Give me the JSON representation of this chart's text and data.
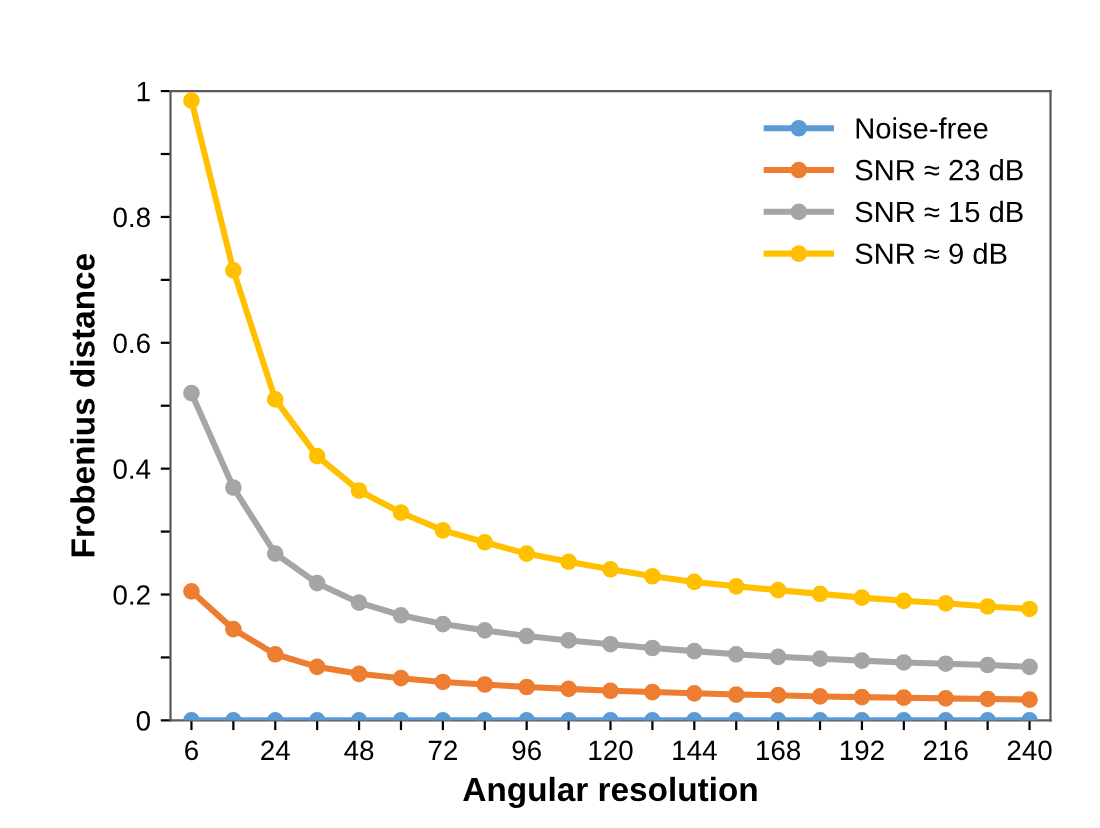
{
  "chart_data": {
    "type": "line",
    "xlabel": "Angular resolution",
    "ylabel": "Frobenius distance",
    "categories": [
      "6",
      null,
      "24",
      null,
      "48",
      null,
      "72",
      null,
      "96",
      null,
      "120",
      null,
      "144",
      null,
      "168",
      null,
      "192",
      null,
      "216",
      null,
      "240"
    ],
    "series": [
      {
        "name": "Noise-free",
        "color": "#5b9bd5",
        "values": [
          0,
          0,
          0,
          0,
          0,
          0,
          0,
          0,
          0,
          0,
          0,
          0,
          0,
          0,
          0,
          0,
          0,
          0,
          0,
          0,
          0
        ]
      },
      {
        "name": "SNR ≈ 23 dB",
        "color": "#ed7d31",
        "values": [
          0.205,
          0.145,
          0.105,
          0.085,
          0.074,
          0.067,
          0.061,
          0.057,
          0.053,
          0.05,
          0.047,
          0.045,
          0.043,
          0.041,
          0.04,
          0.038,
          0.037,
          0.036,
          0.035,
          0.034,
          0.033
        ]
      },
      {
        "name": "SNR ≈ 15 dB",
        "color": "#a5a5a5",
        "values": [
          0.52,
          0.37,
          0.265,
          0.218,
          0.187,
          0.167,
          0.153,
          0.143,
          0.134,
          0.127,
          0.121,
          0.115,
          0.11,
          0.105,
          0.101,
          0.098,
          0.095,
          0.092,
          0.09,
          0.088,
          0.085
        ]
      },
      {
        "name": "SNR ≈ 9 dB",
        "color": "#ffc000",
        "values": [
          0.985,
          0.715,
          0.51,
          0.42,
          0.365,
          0.33,
          0.302,
          0.283,
          0.265,
          0.252,
          0.24,
          0.229,
          0.22,
          0.213,
          0.207,
          0.201,
          0.195,
          0.19,
          0.186,
          0.181,
          0.177
        ]
      }
    ],
    "ylim": [
      0,
      1
    ],
    "yticks": [
      0,
      {
        "value": 0.1,
        "label": null
      },
      {
        "value": 0.2,
        "label": "0.2"
      },
      {
        "value": 0.3,
        "label": null
      },
      {
        "value": 0.4,
        "label": "0.4"
      },
      {
        "value": 0.5,
        "label": null
      },
      {
        "value": 0.6,
        "label": "0.6"
      },
      {
        "value": 0.7,
        "label": null
      },
      {
        "value": 0.8,
        "label": "0.8"
      },
      {
        "value": 0.9,
        "label": null
      },
      1
    ],
    "grid": false,
    "legend": "top right",
    "marker": "circle",
    "line_style": "solid"
  }
}
